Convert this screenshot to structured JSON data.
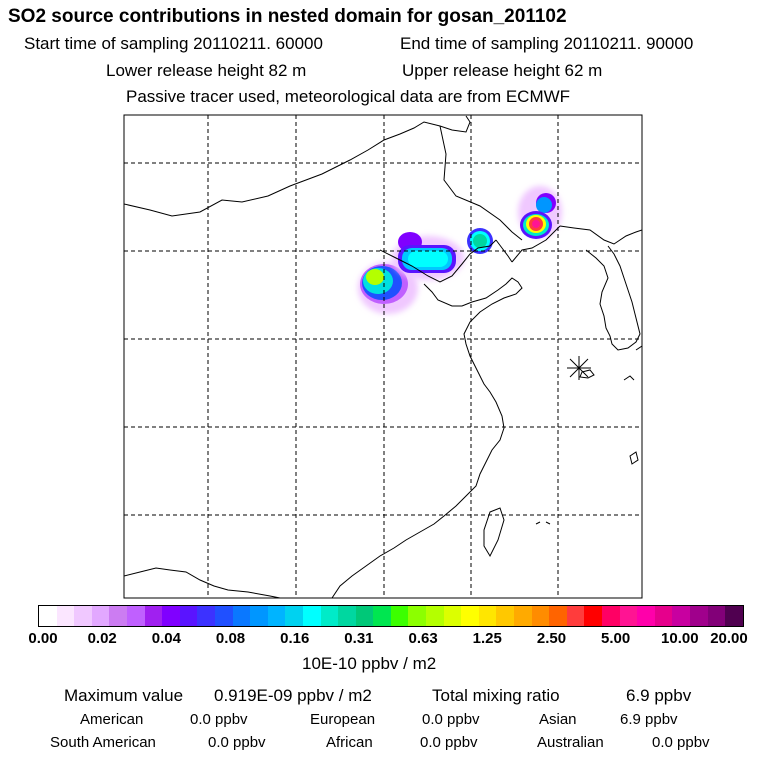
{
  "header": {
    "title": "SO2 source contributions in nested domain for gosan_201102",
    "start_time": "Start time of sampling 20110211. 60000",
    "end_time": "End time of sampling 20110211. 90000",
    "lower_release": "Lower release height   82 m",
    "upper_release": "Upper release height   62 m",
    "note": "Passive tracer used, meteorological data are from ECMWF"
  },
  "colorbar": {
    "colors": [
      "#ffffff",
      "#fbe6ff",
      "#f0c8ff",
      "#e2a8ff",
      "#cc7cf2",
      "#c060ff",
      "#a020f0",
      "#8000ff",
      "#5a14ff",
      "#3c32ff",
      "#2050ff",
      "#0a78ff",
      "#0096ff",
      "#00b4ff",
      "#00d2f0",
      "#00ffff",
      "#00ebc8",
      "#00d7a0",
      "#00c878",
      "#00e650",
      "#3cff00",
      "#8cff00",
      "#b4ff00",
      "#dcff00",
      "#ffff00",
      "#ffe600",
      "#ffc800",
      "#ffaa00",
      "#ff8c00",
      "#ff6400",
      "#ff3c3c",
      "#ff0000",
      "#ff0064",
      "#ff1493",
      "#ff00aa",
      "#e6008c",
      "#c800a0",
      "#a0008c",
      "#820078",
      "#500050"
    ],
    "labels": [
      "0.00",
      "0.02",
      "0.04",
      "0.08",
      "0.16",
      "0.31",
      "0.63",
      "1.25",
      "2.50",
      "5.00",
      "10.00",
      "20.00"
    ],
    "unit": "10E-10 ppbv / m2"
  },
  "summary": {
    "max_label": "Maximum value",
    "max_value": "0.919E-09 ppbv / m2",
    "total_label": "Total mixing ratio",
    "total_value": "6.9 ppbv",
    "regions": [
      {
        "name": "American",
        "value": "0.0 ppbv"
      },
      {
        "name": "European",
        "value": "0.0 ppbv"
      },
      {
        "name": "Asian",
        "value": "6.9 ppbv"
      },
      {
        "name": "South American",
        "value": "0.0 ppbv"
      },
      {
        "name": "African",
        "value": "0.0 ppbv"
      },
      {
        "name": "Australian",
        "value": "0.0 ppbv"
      }
    ]
  }
}
